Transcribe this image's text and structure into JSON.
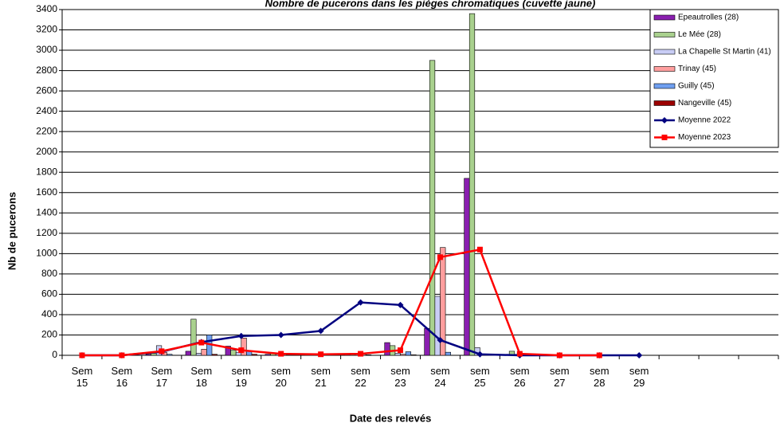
{
  "chart_data": {
    "type": "bar",
    "title": "Nombre de pucerons dans les pièges chromatiques (cuvette jaune)",
    "x_label": "Date des relevés",
    "y_label": "Nb de pucerons",
    "categories": [
      "Sem 15",
      "Sem 16",
      "Sem 17",
      "Sem 18",
      "sem 19",
      "sem 20",
      "sem 21",
      "sem 22",
      "sem 23",
      "sem 24",
      "sem 25",
      "sem 26",
      "sem 27",
      "sem 28",
      "sem 29",
      null,
      null,
      null
    ],
    "ylim": [
      0,
      3400
    ],
    "yticks": [
      0,
      200,
      400,
      600,
      800,
      1000,
      1200,
      1400,
      1600,
      1800,
      2000,
      2200,
      2400,
      2600,
      2800,
      3000,
      3200,
      3400
    ],
    "grid": true,
    "legend": "top-right",
    "series": [
      {
        "name": "Epeautrolles (28)",
        "color": "#8a1fb0",
        "values": [
          0,
          0,
          10,
          40,
          90,
          10,
          10,
          10,
          125,
          265,
          1740,
          0,
          0,
          0,
          null,
          null,
          null,
          null
        ]
      },
      {
        "name": "Le Mée (28)",
        "color": "#a9d18e",
        "values": [
          0,
          0,
          20,
          355,
          50,
          20,
          10,
          20,
          95,
          2900,
          3360,
          40,
          0,
          0,
          null,
          null,
          null,
          null
        ]
      },
      {
        "name": "La Chapelle St Martin (41)",
        "color": "#c9cdf5",
        "values": [
          0,
          0,
          95,
          20,
          30,
          10,
          5,
          10,
          20,
          580,
          75,
          10,
          0,
          0,
          null,
          null,
          null,
          null
        ]
      },
      {
        "name": "Trinay (45)",
        "color": "#ff9e9e",
        "values": [
          0,
          0,
          30,
          60,
          170,
          10,
          5,
          10,
          10,
          1060,
          0,
          0,
          0,
          0,
          null,
          null,
          null,
          null
        ]
      },
      {
        "name": "Guilly (45)",
        "color": "#6f9ff0",
        "values": [
          0,
          0,
          10,
          200,
          40,
          5,
          5,
          5,
          35,
          30,
          0,
          0,
          0,
          0,
          null,
          null,
          null,
          null
        ]
      },
      {
        "name": "Nangeville (45)",
        "color": "#9b0000",
        "values": [
          0,
          0,
          0,
          10,
          10,
          0,
          0,
          0,
          5,
          0,
          0,
          0,
          0,
          0,
          null,
          null,
          null,
          null
        ]
      },
      {
        "name": "Moyenne 2022",
        "color": "#000080",
        "type": "line",
        "marker": "diamond",
        "values": [
          0,
          0,
          35,
          130,
          190,
          200,
          240,
          520,
          495,
          150,
          10,
          0,
          0,
          0,
          0,
          null,
          null,
          null
        ]
      },
      {
        "name": "Moyenne 2023",
        "color": "#ff0000",
        "type": "line",
        "marker": "square",
        "values": [
          0,
          0,
          40,
          125,
          50,
          15,
          10,
          15,
          50,
          965,
          1040,
          15,
          0,
          0,
          null,
          null,
          null,
          null
        ]
      }
    ]
  }
}
